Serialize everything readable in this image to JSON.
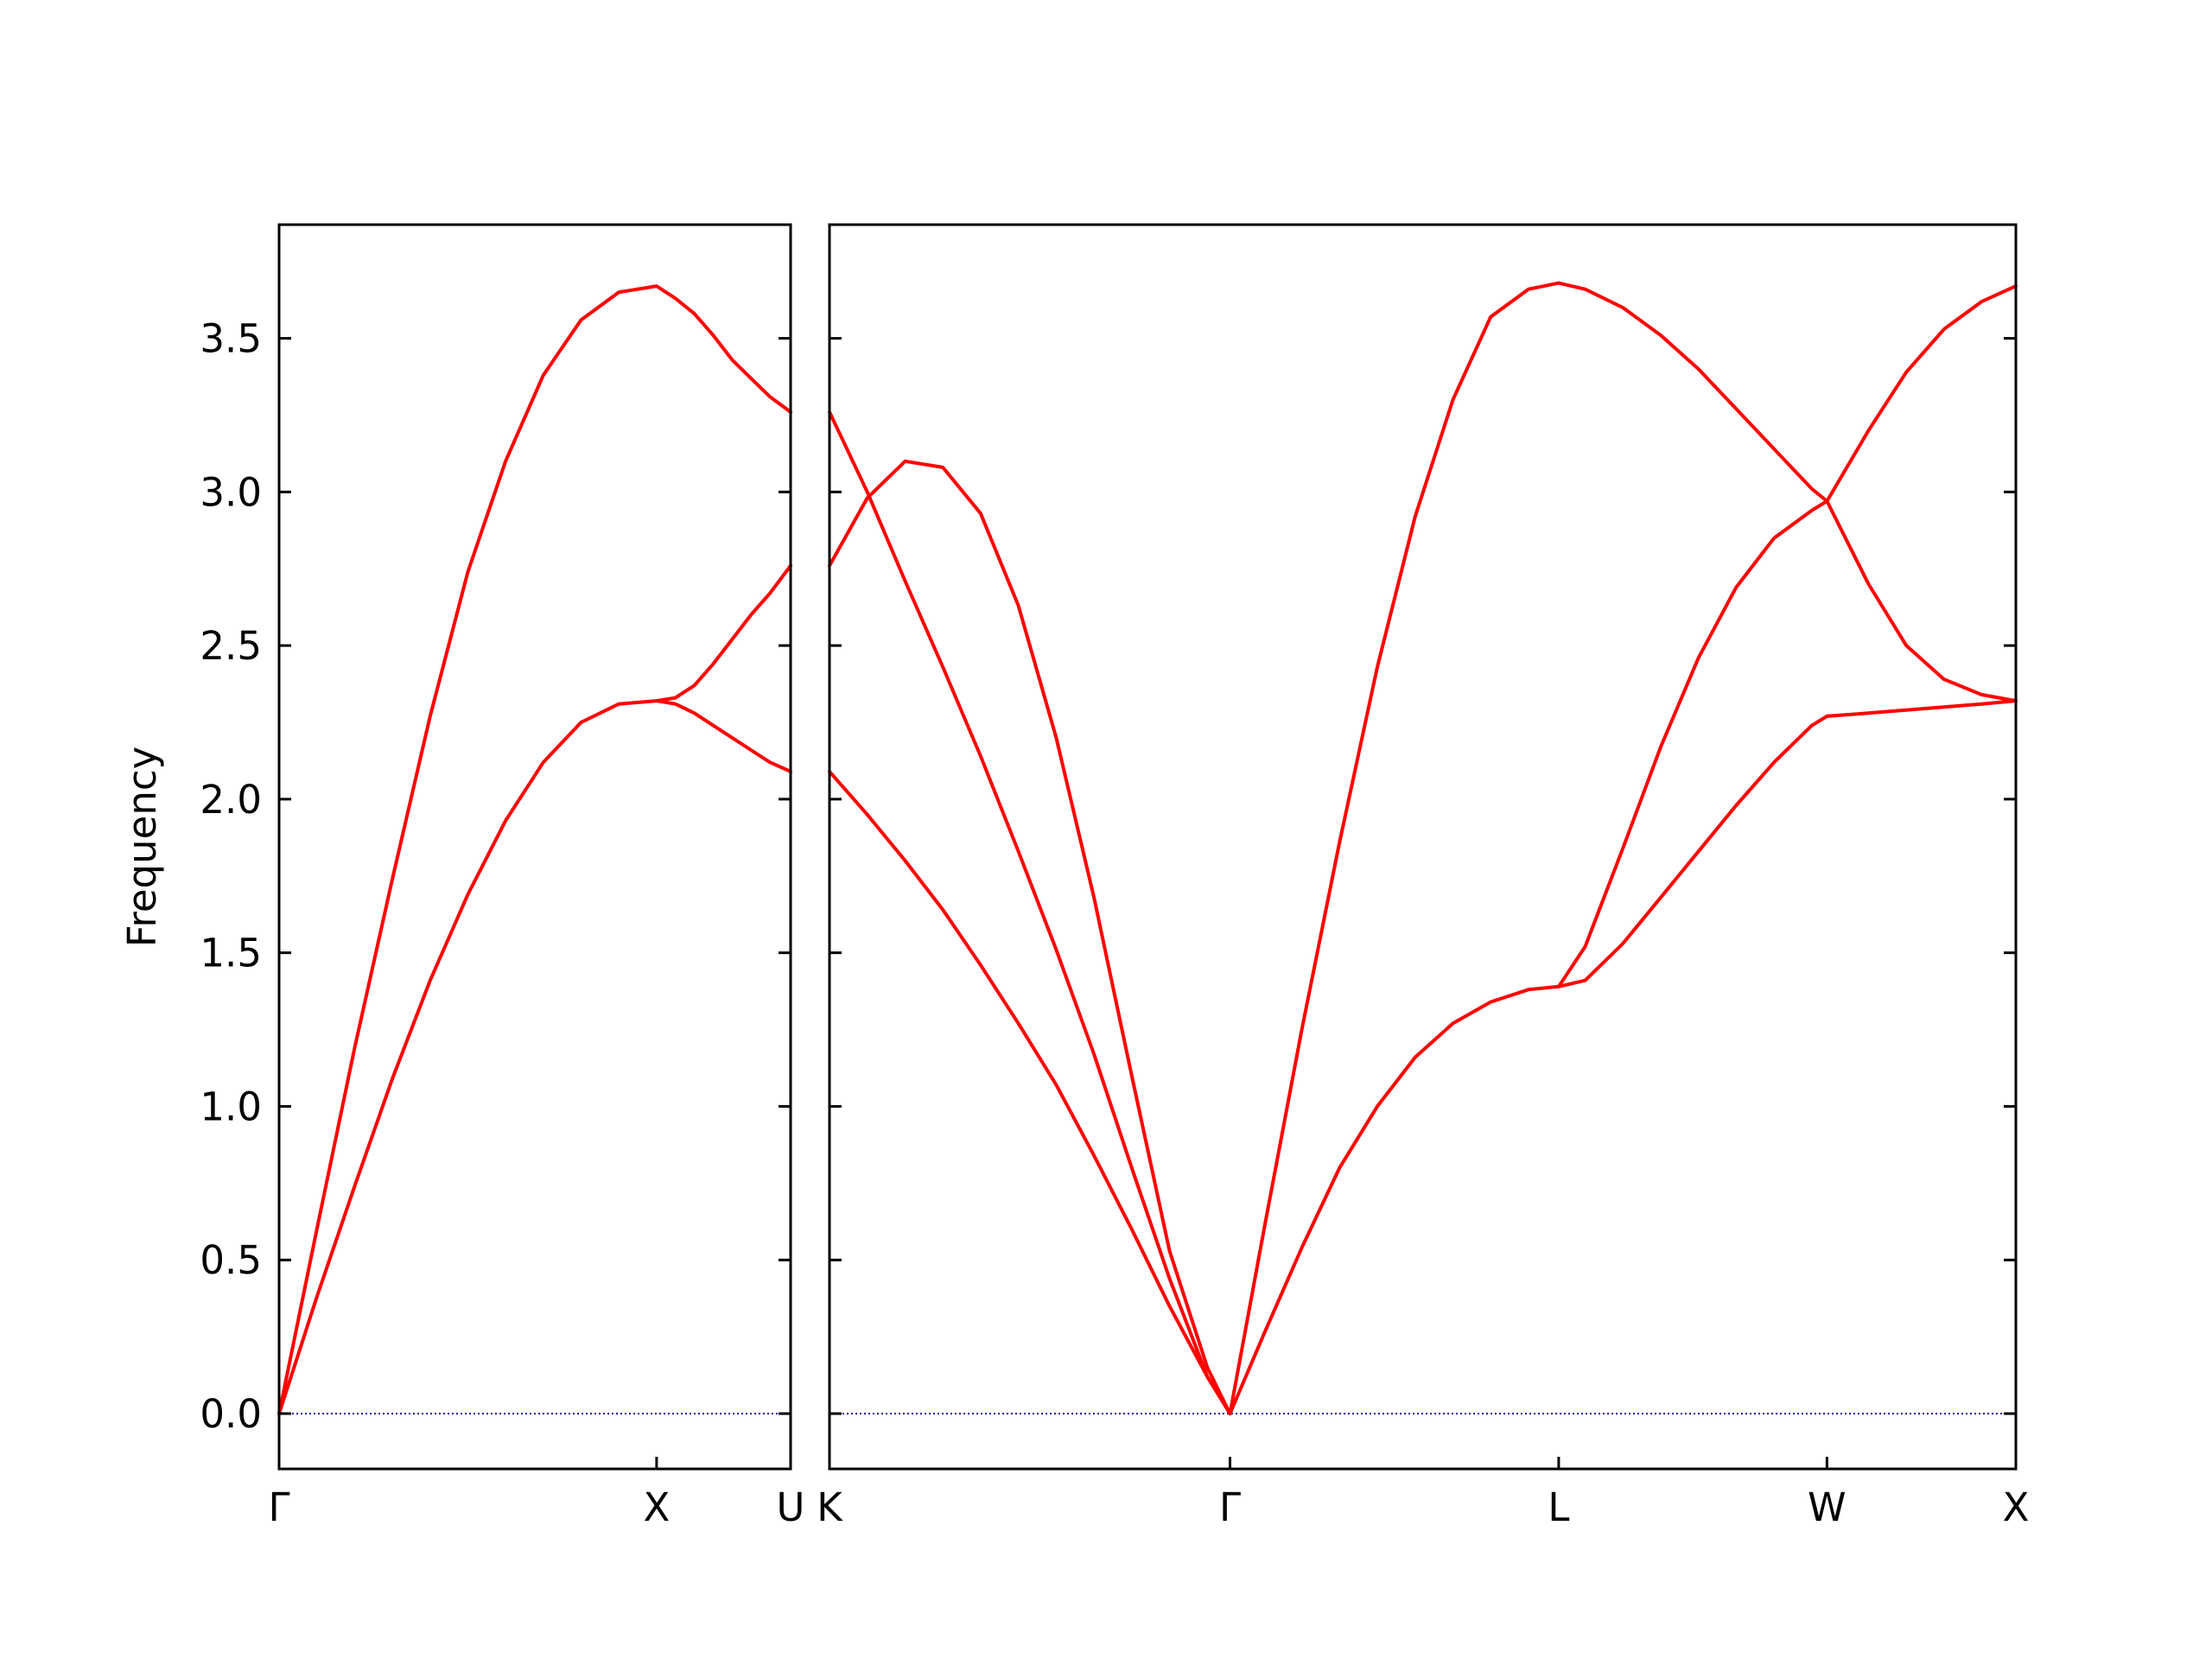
{
  "chart_data": {
    "type": "line",
    "ylabel": "Frequency",
    "ylim": [
      -0.18,
      3.87
    ],
    "yticks": [
      "0.0",
      "0.5",
      "1.0",
      "1.5",
      "2.0",
      "2.5",
      "3.0",
      "3.5"
    ],
    "ytick_values": [
      0.0,
      0.5,
      1.0,
      1.5,
      2.0,
      2.5,
      3.0,
      3.5
    ],
    "line_color": "#ff0000",
    "zero_line_color": "#0000aa",
    "panels": [
      {
        "xticks": [
          "Γ",
          "X",
          "U"
        ],
        "xtick_values": [
          0.0,
          1.0,
          1.355
        ],
        "xlim": [
          0.0,
          1.355
        ],
        "bands": [
          {
            "x": [
              0.0,
              0.1,
              0.2,
              0.3,
              0.4,
              0.5,
              0.6,
              0.7,
              0.8,
              0.9,
              1.0,
              1.05,
              1.1,
              1.15,
              1.2,
              1.25,
              1.3,
              1.355
            ],
            "y": [
              0.0,
              0.38,
              0.74,
              1.09,
              1.41,
              1.69,
              1.93,
              2.12,
              2.25,
              2.31,
              2.32,
              2.33,
              2.37,
              2.44,
              2.52,
              2.6,
              2.67,
              2.76
            ]
          },
          {
            "x": [
              0.0,
              0.1,
              0.2,
              0.3,
              0.4,
              0.5,
              0.6,
              0.7,
              0.8,
              0.9,
              1.0,
              1.05,
              1.1,
              1.15,
              1.2,
              1.25,
              1.3,
              1.355
            ],
            "y": [
              0.0,
              0.6,
              1.19,
              1.74,
              2.27,
              2.74,
              3.1,
              3.38,
              3.56,
              3.65,
              3.67,
              3.63,
              3.58,
              3.51,
              3.43,
              3.37,
              3.31,
              3.26
            ]
          },
          {
            "x": [
              1.0,
              1.05,
              1.1,
              1.15,
              1.2,
              1.25,
              1.3,
              1.355
            ],
            "y": [
              2.32,
              2.31,
              2.28,
              2.24,
              2.2,
              2.16,
              2.12,
              2.09
            ]
          }
        ]
      },
      {
        "xticks": [
          "K",
          "Γ",
          "L",
          "W",
          "X"
        ],
        "xtick_values": [
          0.0,
          1.06,
          1.93,
          2.64,
          3.14
        ],
        "xlim": [
          0.0,
          3.14
        ],
        "bands": [
          {
            "x": [
              0.0,
              0.1,
              0.2,
              0.3,
              0.4,
              0.5,
              0.6,
              0.7,
              0.8,
              0.9,
              1.0,
              1.06
            ],
            "y": [
              2.09,
              1.95,
              1.8,
              1.64,
              1.46,
              1.27,
              1.07,
              0.84,
              0.6,
              0.35,
              0.12,
              0.0
            ]
          },
          {
            "x": [
              0.0,
              0.1,
              0.2,
              0.3,
              0.4,
              0.5,
              0.6,
              0.7,
              0.8,
              0.9,
              1.0,
              1.06
            ],
            "y": [
              3.26,
              3.0,
              2.71,
              2.43,
              2.14,
              1.83,
              1.51,
              1.17,
              0.8,
              0.44,
              0.12,
              0.0
            ]
          },
          {
            "x": [
              0.0,
              0.1,
              0.2,
              0.3,
              0.4,
              0.5,
              0.6,
              0.7,
              0.8,
              0.9,
              1.0,
              1.06
            ],
            "y": [
              2.76,
              2.98,
              3.1,
              3.08,
              2.93,
              2.63,
              2.2,
              1.68,
              1.1,
              0.53,
              0.15,
              0.0
            ]
          },
          {
            "x": [
              1.06,
              1.15,
              1.25,
              1.35,
              1.45,
              1.55,
              1.65,
              1.75,
              1.85,
              1.93
            ],
            "y": [
              0.0,
              0.26,
              0.54,
              0.8,
              1.0,
              1.16,
              1.27,
              1.34,
              1.38,
              1.39
            ]
          },
          {
            "x": [
              1.06,
              1.15,
              1.25,
              1.35,
              1.45,
              1.55,
              1.65,
              1.75,
              1.85,
              1.93
            ],
            "y": [
              0.0,
              0.6,
              1.25,
              1.86,
              2.43,
              2.92,
              3.3,
              3.57,
              3.66,
              3.68
            ]
          },
          {
            "x": [
              1.93,
              2.0,
              2.1,
              2.2,
              2.3,
              2.4,
              2.5,
              2.6,
              2.64
            ],
            "y": [
              1.39,
              1.41,
              1.53,
              1.68,
              1.83,
              1.98,
              2.12,
              2.24,
              2.27
            ]
          },
          {
            "x": [
              1.93,
              2.0,
              2.1,
              2.2,
              2.3,
              2.4,
              2.5,
              2.6,
              2.64
            ],
            "y": [
              1.39,
              1.52,
              1.84,
              2.17,
              2.46,
              2.69,
              2.85,
              2.94,
              2.97
            ]
          },
          {
            "x": [
              1.93,
              2.0,
              2.1,
              2.2,
              2.3,
              2.4,
              2.5,
              2.6,
              2.64
            ],
            "y": [
              3.68,
              3.66,
              3.6,
              3.51,
              3.4,
              3.27,
              3.14,
              3.01,
              2.97
            ]
          },
          {
            "x": [
              2.64,
              2.75,
              2.85,
              2.95,
              3.05,
              3.14
            ],
            "y": [
              2.27,
              2.28,
              2.29,
              2.3,
              2.31,
              2.32
            ]
          },
          {
            "x": [
              2.64,
              2.75,
              2.85,
              2.95,
              3.05,
              3.14
            ],
            "y": [
              2.97,
              3.2,
              3.39,
              3.53,
              3.62,
              3.67
            ]
          },
          {
            "x": [
              2.64,
              2.75,
              2.85,
              2.95,
              3.05,
              3.14
            ],
            "y": [
              2.97,
              2.7,
              2.5,
              2.39,
              2.34,
              2.32
            ]
          }
        ]
      }
    ]
  }
}
